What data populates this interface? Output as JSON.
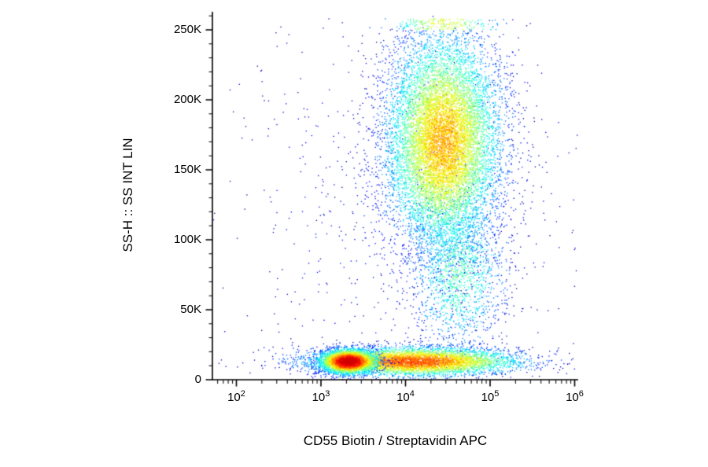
{
  "chart_data": {
    "type": "scatter",
    "subtype": "flow-cytometry-pseudocolor-dot-plot",
    "title": "",
    "xlabel": "CD55 Biotin / Streptavidin APC",
    "ylabel": "SS-H :: SS INT LIN",
    "x_scale": "log10",
    "x_range_log10": [
      1.72,
      6.04
    ],
    "x_ticks": [
      {
        "base": "10",
        "exp": "2",
        "log10": 2
      },
      {
        "base": "10",
        "exp": "3",
        "log10": 3
      },
      {
        "base": "10",
        "exp": "4",
        "log10": 4
      },
      {
        "base": "10",
        "exp": "5",
        "log10": 5
      },
      {
        "base": "10",
        "exp": "6",
        "log10": 6
      }
    ],
    "x_minor_ticks": "2-9 per decade",
    "y_scale": "linear",
    "y_range": [
      0,
      263000
    ],
    "y_ticks": [
      {
        "label": "0",
        "value": 0
      },
      {
        "label": "50K",
        "value": 50000
      },
      {
        "label": "100K",
        "value": 100000
      },
      {
        "label": "150K",
        "value": 150000
      },
      {
        "label": "200K",
        "value": 200000
      },
      {
        "label": "250K",
        "value": 250000
      }
    ],
    "y_minor_step": 10000,
    "grid": false,
    "legend": null,
    "colormap": "jet",
    "colors": {
      "axis": "#000000",
      "background": "#ffffff",
      "density_low": "#0000d0",
      "density_mid": "#00c000",
      "density_high": "#ff0000"
    },
    "populations": [
      {
        "name": "low-ssc-band-core",
        "count": 4000,
        "x_log_mean": 3.33,
        "x_log_sd": 0.16,
        "y_mean": 13000,
        "y_sd": 4200,
        "heat": 1.0
      },
      {
        "name": "low-ssc-band-broad",
        "count": 5600,
        "x_log_mean": 4.1,
        "x_log_sd": 0.6,
        "y_mean": 13000,
        "y_sd": 5000,
        "heat": 0.8
      },
      {
        "name": "high-ssc-granulocyte-cloud",
        "count": 11000,
        "x_log_mean": 4.45,
        "x_log_sd": 0.33,
        "y_mean": 170000,
        "y_sd": 38000,
        "heat": 0.7,
        "clip_top": 250000,
        "clip_spray": 8000
      },
      {
        "name": "mid-ssc-monocyte-bridge",
        "count": 1700,
        "x_log_mean": 4.62,
        "x_log_sd": 0.28,
        "y_mean": 78000,
        "y_sd": 30000,
        "heat": 0.45
      },
      {
        "name": "scattered-background",
        "count": 900,
        "x_log_mean": 4.0,
        "x_log_sd": 1.1,
        "y_mean": 120000,
        "y_sd": 90000,
        "heat": 0.12
      }
    ]
  }
}
